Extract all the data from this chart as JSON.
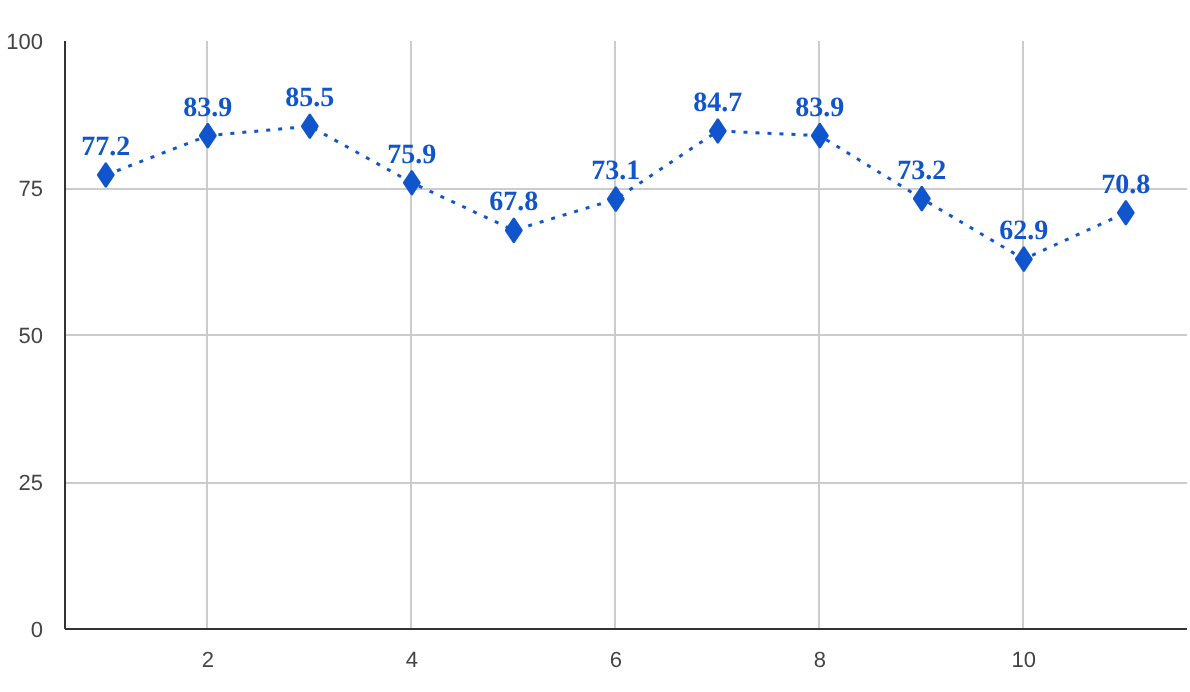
{
  "chart_data": {
    "type": "line",
    "x": [
      1,
      2,
      3,
      4,
      5,
      6,
      7,
      8,
      9,
      10,
      11
    ],
    "series": [
      {
        "color": "#1155cc",
        "values": [
          77.2,
          83.9,
          85.5,
          75.9,
          67.8,
          73.1,
          84.7,
          83.9,
          73.2,
          62.9,
          70.8
        ]
      }
    ],
    "xlim": [
      0.6,
      11.6
    ],
    "ylim": [
      0,
      100
    ],
    "xticks": [
      2,
      4,
      6,
      8,
      10
    ],
    "yticks": [
      0,
      25,
      50,
      75,
      100
    ],
    "grid": true,
    "marker": "diamond",
    "line_style": "dotted",
    "data_labels": true
  }
}
